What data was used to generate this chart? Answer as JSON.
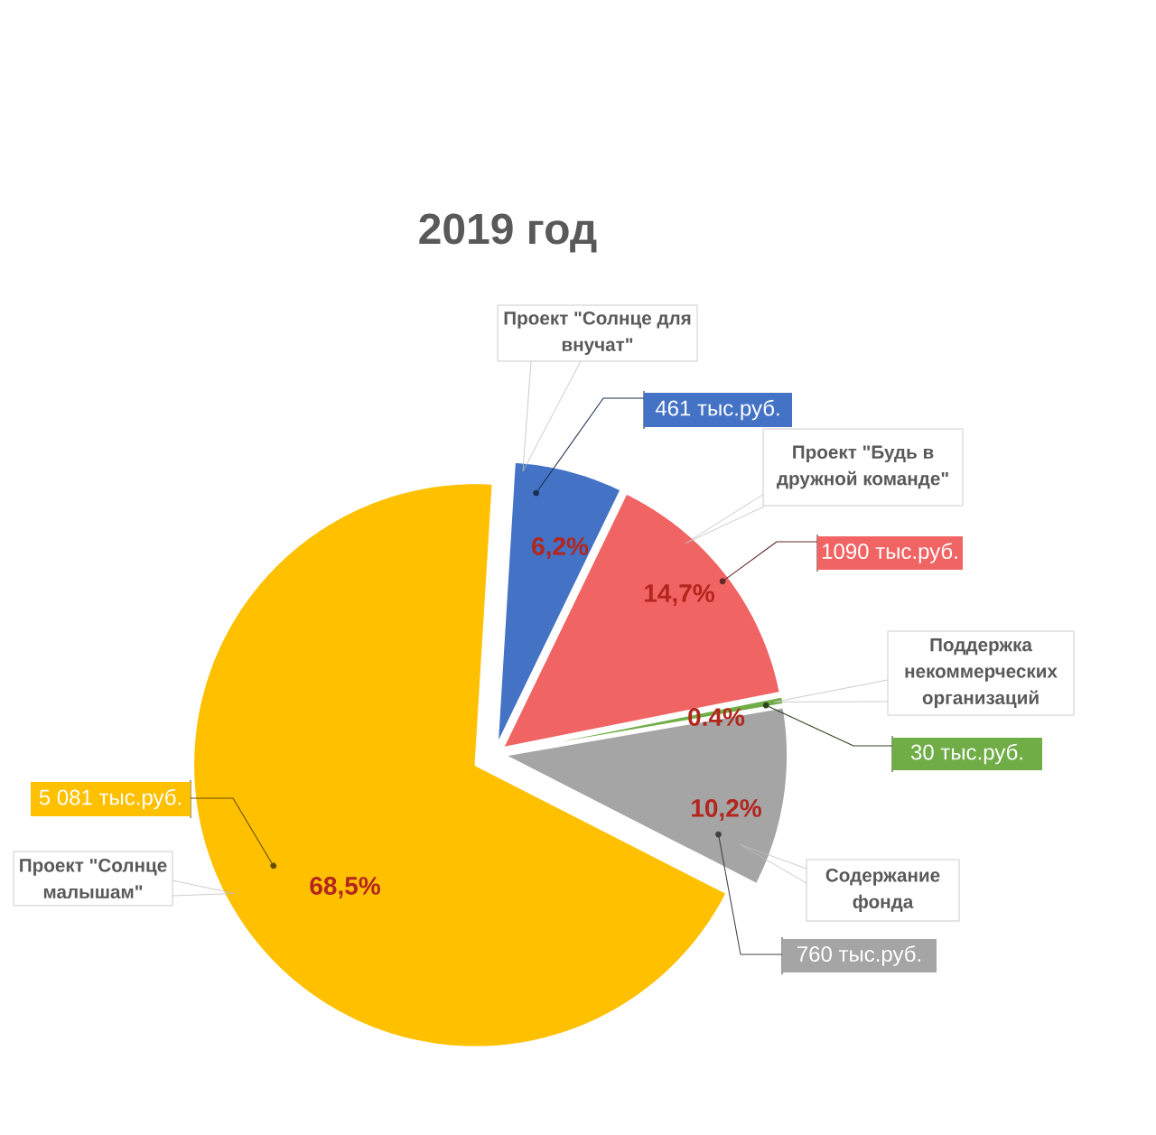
{
  "chart_data": {
    "type": "pie",
    "title": "2019 год",
    "categories": [
      "Проект \"Солнце для внучат\"",
      "Проект \"Будь в дружной команде\"",
      "Поддержка некоммерческих организаций",
      "Содержание фонда",
      "Проект \"Солнце малышам\""
    ],
    "values": [
      461,
      1090,
      30,
      760,
      5081
    ],
    "colors": [
      "#4472c4",
      "#f06464",
      "#70ad47",
      "#a5a5a5",
      "#ffc000"
    ],
    "value_labels": [
      "461 тыс.руб.",
      "1090 тыс.руб.",
      "30 тыс.руб.",
      "760 тыс.руб.",
      "5 081 тыс.руб."
    ],
    "annotations": [
      "6,2%",
      "14,7%",
      "0.4%",
      "10,2%",
      "68,5%"
    ]
  }
}
